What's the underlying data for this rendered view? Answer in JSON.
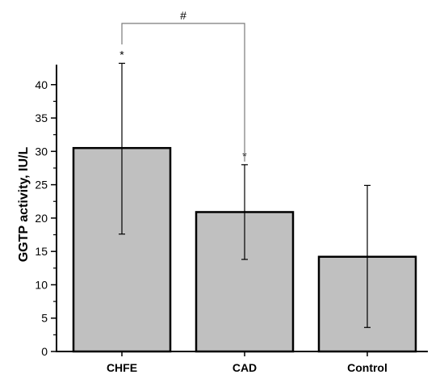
{
  "chart_data": {
    "type": "bar",
    "categories": [
      "CHFE",
      "CAD",
      "Control"
    ],
    "values": [
      30.5,
      20.9,
      14.2
    ],
    "error_upper": [
      43.2,
      28.0,
      24.9
    ],
    "error_lower": [
      17.6,
      13.8,
      3.6
    ],
    "xlabel": "",
    "ylabel": "GGTP activity, IU/L",
    "ylim": [
      0,
      43
    ],
    "yticks": [
      0,
      5,
      10,
      15,
      20,
      25,
      30,
      35,
      40
    ],
    "bar_color": "#c0c0c0",
    "annotations": {
      "stars": [
        "*",
        "*",
        ""
      ],
      "bracket": {
        "from": "CHFE",
        "to": "CAD",
        "label": "#"
      }
    }
  }
}
